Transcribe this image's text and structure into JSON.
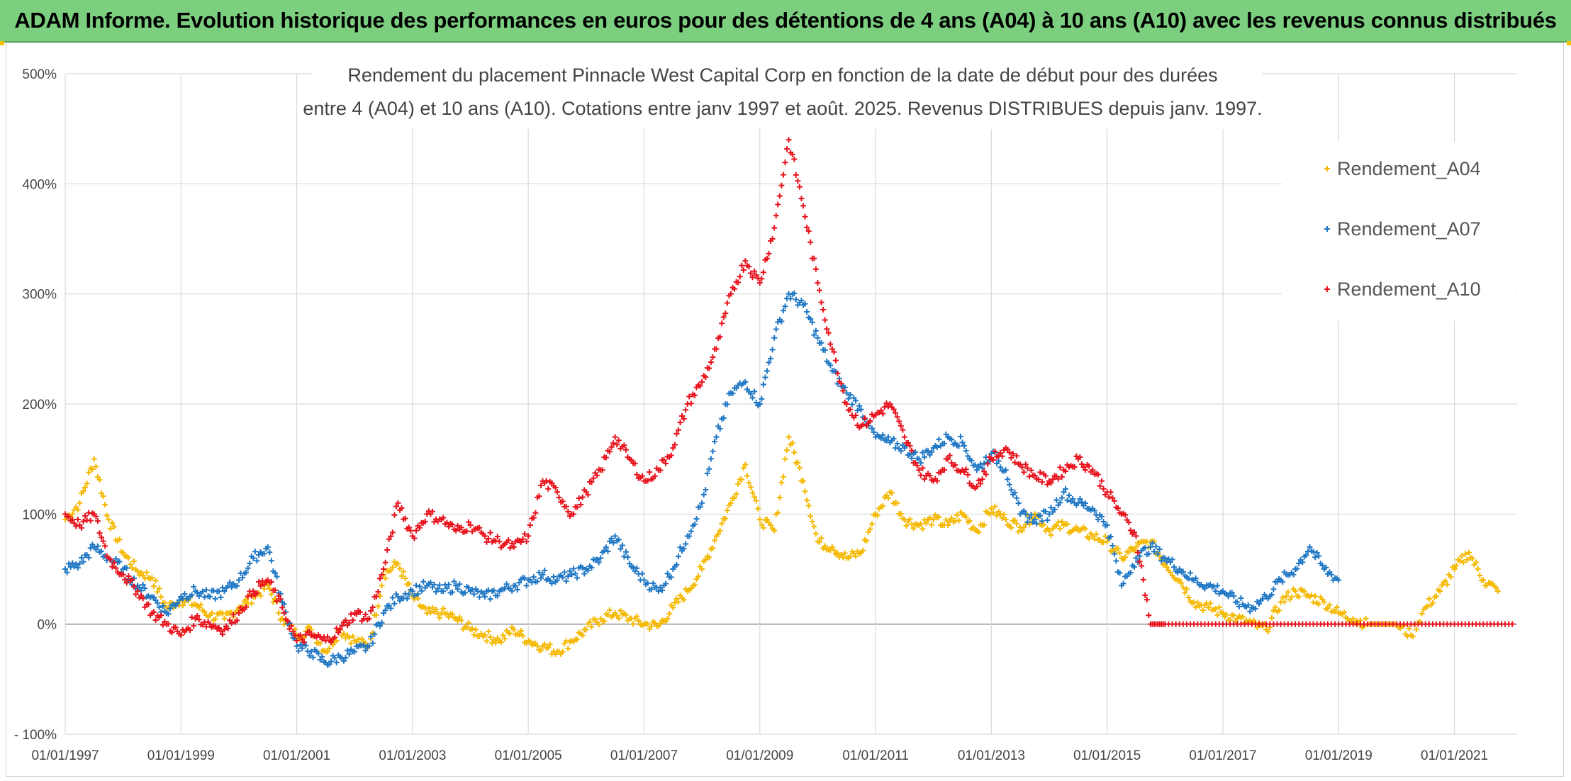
{
  "header": {
    "banner": "ADAM Informe. Evolution historique des performances en euros pour des détentions de 4 ans (A04) à 10 ans (A10) avec les revenus connus distribués"
  },
  "chart_data": {
    "type": "scatter",
    "title_line1": "Rendement du placement Pinnacle West Capital Corp en fonction de la date de début pour des durées",
    "title_line2": "entre 4 (A04) et 10 ans (A10). Cotations entre janv 1997 et août. 2025. Revenus DISTRIBUES depuis janv. 1997.",
    "xlabel": "",
    "ylabel": "",
    "x_range": [
      "1997-01-01",
      "2022-02-01"
    ],
    "ylim": [
      -100,
      500
    ],
    "y_ticks": [
      -100,
      0,
      100,
      200,
      300,
      400,
      500
    ],
    "y_tick_labels": [
      "- 100%",
      "0%",
      "100%",
      "200%",
      "300%",
      "400%",
      "500%"
    ],
    "x_tick_labels": [
      "01/01/1997",
      "01/01/1999",
      "01/01/2001",
      "01/01/2003",
      "01/01/2005",
      "01/01/2007",
      "01/01/2009",
      "01/01/2011",
      "01/01/2013",
      "01/01/2015",
      "01/01/2017",
      "01/01/2019",
      "01/01/2021"
    ],
    "grid": true,
    "legend_position": "top-right",
    "marker": "+",
    "series": [
      {
        "name": "Rendement_A04",
        "color": "#f5b800",
        "points": [
          [
            "1997-01",
            95
          ],
          [
            "1997-04",
            110
          ],
          [
            "1997-07",
            150
          ],
          [
            "1997-10",
            95
          ],
          [
            "1998-01",
            65
          ],
          [
            "1998-04",
            48
          ],
          [
            "1998-07",
            42
          ],
          [
            "1998-10",
            15
          ],
          [
            "1999-01",
            22
          ],
          [
            "1999-04",
            18
          ],
          [
            "1999-07",
            8
          ],
          [
            "1999-10",
            5
          ],
          [
            "2000-01",
            15
          ],
          [
            "2000-04",
            25
          ],
          [
            "2000-07",
            35
          ],
          [
            "2000-10",
            5
          ],
          [
            "2001-01",
            -10
          ],
          [
            "2001-04",
            -5
          ],
          [
            "2001-07",
            -25
          ],
          [
            "2001-10",
            -5
          ],
          [
            "2002-01",
            -15
          ],
          [
            "2002-04",
            -20
          ],
          [
            "2002-07",
            45
          ],
          [
            "2002-10",
            55
          ],
          [
            "2003-01",
            25
          ],
          [
            "2003-04",
            10
          ],
          [
            "2003-07",
            10
          ],
          [
            "2003-10",
            5
          ],
          [
            "2004-01",
            -5
          ],
          [
            "2004-04",
            -10
          ],
          [
            "2004-07",
            -15
          ],
          [
            "2004-10",
            -5
          ],
          [
            "2005-01",
            -15
          ],
          [
            "2005-04",
            -20
          ],
          [
            "2005-07",
            -25
          ],
          [
            "2005-10",
            -15
          ],
          [
            "2006-01",
            -5
          ],
          [
            "2006-04",
            5
          ],
          [
            "2006-07",
            10
          ],
          [
            "2006-10",
            5
          ],
          [
            "2007-01",
            0
          ],
          [
            "2007-04",
            -2
          ],
          [
            "2007-07",
            15
          ],
          [
            "2007-10",
            30
          ],
          [
            "2008-01",
            50
          ],
          [
            "2008-04",
            80
          ],
          [
            "2008-07",
            110
          ],
          [
            "2008-10",
            145
          ],
          [
            "2009-01",
            95
          ],
          [
            "2009-04",
            85
          ],
          [
            "2009-07",
            170
          ],
          [
            "2009-10",
            130
          ],
          [
            "2010-01",
            75
          ],
          [
            "2010-04",
            70
          ],
          [
            "2010-07",
            60
          ],
          [
            "2010-10",
            65
          ],
          [
            "2011-01",
            100
          ],
          [
            "2011-04",
            120
          ],
          [
            "2011-07",
            95
          ],
          [
            "2011-10",
            90
          ],
          [
            "2012-01",
            95
          ],
          [
            "2012-04",
            90
          ],
          [
            "2012-07",
            100
          ],
          [
            "2012-10",
            85
          ],
          [
            "2013-01",
            105
          ],
          [
            "2013-04",
            95
          ],
          [
            "2013-07",
            88
          ],
          [
            "2013-10",
            100
          ],
          [
            "2014-01",
            85
          ],
          [
            "2014-04",
            90
          ],
          [
            "2014-07",
            85
          ],
          [
            "2014-10",
            80
          ],
          [
            "2015-01",
            75
          ],
          [
            "2015-04",
            60
          ],
          [
            "2015-07",
            70
          ],
          [
            "2015-10",
            75
          ],
          [
            "2016-01",
            55
          ],
          [
            "2016-04",
            40
          ],
          [
            "2016-07",
            20
          ],
          [
            "2016-10",
            15
          ],
          [
            "2017-01",
            10
          ],
          [
            "2017-04",
            5
          ],
          [
            "2017-07",
            0
          ],
          [
            "2017-10",
            -5
          ],
          [
            "2018-01",
            20
          ],
          [
            "2018-04",
            30
          ],
          [
            "2018-07",
            25
          ],
          [
            "2018-10",
            20
          ],
          [
            "2019-01",
            10
          ],
          [
            "2019-04",
            5
          ],
          [
            "2019-07",
            0
          ],
          [
            "2019-10",
            0
          ],
          [
            "2020-01",
            0
          ],
          [
            "2020-04",
            -10
          ],
          [
            "2020-07",
            15
          ],
          [
            "2020-10",
            30
          ],
          [
            "2021-01",
            50
          ],
          [
            "2021-04",
            65
          ],
          [
            "2021-07",
            40
          ],
          [
            "2021-10",
            30
          ]
        ]
      },
      {
        "name": "Rendement_A07",
        "color": "#1f77c4",
        "points": [
          [
            "1997-01",
            50
          ],
          [
            "1997-04",
            55
          ],
          [
            "1997-07",
            70
          ],
          [
            "1997-10",
            60
          ],
          [
            "1998-01",
            50
          ],
          [
            "1998-04",
            35
          ],
          [
            "1998-07",
            25
          ],
          [
            "1998-10",
            10
          ],
          [
            "1999-01",
            25
          ],
          [
            "1999-04",
            30
          ],
          [
            "1999-07",
            25
          ],
          [
            "1999-10",
            30
          ],
          [
            "2000-01",
            40
          ],
          [
            "2000-04",
            60
          ],
          [
            "2000-07",
            70
          ],
          [
            "2000-10",
            20
          ],
          [
            "2001-01",
            -20
          ],
          [
            "2001-04",
            -25
          ],
          [
            "2001-07",
            -35
          ],
          [
            "2001-10",
            -30
          ],
          [
            "2002-01",
            -25
          ],
          [
            "2002-04",
            -20
          ],
          [
            "2002-07",
            10
          ],
          [
            "2002-10",
            25
          ],
          [
            "2003-01",
            30
          ],
          [
            "2003-04",
            35
          ],
          [
            "2003-07",
            30
          ],
          [
            "2003-10",
            35
          ],
          [
            "2004-01",
            30
          ],
          [
            "2004-04",
            25
          ],
          [
            "2004-07",
            30
          ],
          [
            "2004-10",
            35
          ],
          [
            "2005-01",
            40
          ],
          [
            "2005-04",
            45
          ],
          [
            "2005-07",
            40
          ],
          [
            "2005-10",
            45
          ],
          [
            "2006-01",
            50
          ],
          [
            "2006-04",
            60
          ],
          [
            "2006-07",
            80
          ],
          [
            "2006-10",
            55
          ],
          [
            "2007-01",
            40
          ],
          [
            "2007-04",
            30
          ],
          [
            "2007-07",
            50
          ],
          [
            "2007-10",
            80
          ],
          [
            "2008-01",
            110
          ],
          [
            "2008-04",
            170
          ],
          [
            "2008-07",
            210
          ],
          [
            "2008-10",
            220
          ],
          [
            "2009-01",
            200
          ],
          [
            "2009-04",
            260
          ],
          [
            "2009-07",
            300
          ],
          [
            "2009-10",
            290
          ],
          [
            "2010-01",
            260
          ],
          [
            "2010-04",
            230
          ],
          [
            "2010-07",
            210
          ],
          [
            "2010-10",
            195
          ],
          [
            "2011-01",
            170
          ],
          [
            "2011-04",
            165
          ],
          [
            "2011-07",
            160
          ],
          [
            "2011-10",
            150
          ],
          [
            "2012-01",
            160
          ],
          [
            "2012-04",
            170
          ],
          [
            "2012-07",
            165
          ],
          [
            "2012-10",
            140
          ],
          [
            "2013-01",
            155
          ],
          [
            "2013-04",
            140
          ],
          [
            "2013-07",
            100
          ],
          [
            "2013-10",
            95
          ],
          [
            "2014-01",
            100
          ],
          [
            "2014-04",
            120
          ],
          [
            "2014-07",
            110
          ],
          [
            "2014-10",
            105
          ],
          [
            "2015-01",
            90
          ],
          [
            "2015-04",
            35
          ],
          [
            "2015-07",
            60
          ],
          [
            "2015-10",
            70
          ],
          [
            "2016-01",
            60
          ],
          [
            "2016-04",
            50
          ],
          [
            "2016-07",
            40
          ],
          [
            "2016-10",
            35
          ],
          [
            "2017-01",
            30
          ],
          [
            "2017-04",
            20
          ],
          [
            "2017-07",
            15
          ],
          [
            "2017-10",
            25
          ],
          [
            "2018-01",
            40
          ],
          [
            "2018-04",
            50
          ],
          [
            "2018-07",
            70
          ],
          [
            "2018-10",
            50
          ],
          [
            "2019-01",
            40
          ]
        ]
      },
      {
        "name": "Rendement_A10",
        "color": "#e8111b",
        "points": [
          [
            "1997-01",
            100
          ],
          [
            "1997-04",
            90
          ],
          [
            "1997-07",
            100
          ],
          [
            "1997-10",
            60
          ],
          [
            "1998-01",
            45
          ],
          [
            "1998-04",
            30
          ],
          [
            "1998-07",
            10
          ],
          [
            "1998-10",
            0
          ],
          [
            "1999-01",
            -10
          ],
          [
            "1999-04",
            5
          ],
          [
            "1999-07",
            0
          ],
          [
            "1999-10",
            -5
          ],
          [
            "2000-01",
            10
          ],
          [
            "2000-04",
            30
          ],
          [
            "2000-07",
            40
          ],
          [
            "2000-10",
            15
          ],
          [
            "2001-01",
            -15
          ],
          [
            "2001-04",
            -10
          ],
          [
            "2001-07",
            -15
          ],
          [
            "2001-10",
            -5
          ],
          [
            "2002-01",
            10
          ],
          [
            "2002-04",
            5
          ],
          [
            "2002-07",
            50
          ],
          [
            "2002-10",
            110
          ],
          [
            "2003-01",
            80
          ],
          [
            "2003-04",
            100
          ],
          [
            "2003-07",
            95
          ],
          [
            "2003-10",
            85
          ],
          [
            "2004-01",
            90
          ],
          [
            "2004-04",
            80
          ],
          [
            "2004-07",
            75
          ],
          [
            "2004-10",
            70
          ],
          [
            "2005-01",
            80
          ],
          [
            "2005-04",
            130
          ],
          [
            "2005-07",
            120
          ],
          [
            "2005-10",
            100
          ],
          [
            "2006-01",
            120
          ],
          [
            "2006-04",
            140
          ],
          [
            "2006-07",
            170
          ],
          [
            "2006-10",
            150
          ],
          [
            "2007-01",
            130
          ],
          [
            "2007-04",
            140
          ],
          [
            "2007-07",
            160
          ],
          [
            "2007-10",
            200
          ],
          [
            "2008-01",
            220
          ],
          [
            "2008-04",
            250
          ],
          [
            "2008-07",
            300
          ],
          [
            "2008-10",
            330
          ],
          [
            "2009-01",
            310
          ],
          [
            "2009-04",
            360
          ],
          [
            "2009-07",
            440
          ],
          [
            "2009-10",
            380
          ],
          [
            "2010-01",
            310
          ],
          [
            "2010-04",
            250
          ],
          [
            "2010-07",
            200
          ],
          [
            "2010-10",
            180
          ],
          [
            "2011-01",
            190
          ],
          [
            "2011-04",
            200
          ],
          [
            "2011-07",
            170
          ],
          [
            "2011-10",
            140
          ],
          [
            "2012-01",
            130
          ],
          [
            "2012-04",
            150
          ],
          [
            "2012-07",
            140
          ],
          [
            "2012-10",
            125
          ],
          [
            "2013-01",
            150
          ],
          [
            "2013-04",
            160
          ],
          [
            "2013-07",
            145
          ],
          [
            "2013-10",
            135
          ],
          [
            "2014-01",
            130
          ],
          [
            "2014-04",
            140
          ],
          [
            "2014-07",
            150
          ],
          [
            "2014-10",
            140
          ],
          [
            "2015-01",
            120
          ],
          [
            "2015-04",
            100
          ],
          [
            "2015-07",
            80
          ],
          [
            "2015-10",
            0
          ],
          [
            "2016-01",
            0
          ],
          [
            "2016-07",
            0
          ],
          [
            "2017-01",
            0
          ],
          [
            "2017-07",
            0
          ],
          [
            "2018-01",
            0
          ],
          [
            "2018-07",
            0
          ],
          [
            "2019-01",
            0
          ],
          [
            "2019-07",
            0
          ],
          [
            "2020-01",
            0
          ],
          [
            "2020-07",
            0
          ],
          [
            "2021-01",
            0
          ],
          [
            "2021-07",
            0
          ],
          [
            "2022-01",
            0
          ]
        ]
      }
    ]
  }
}
